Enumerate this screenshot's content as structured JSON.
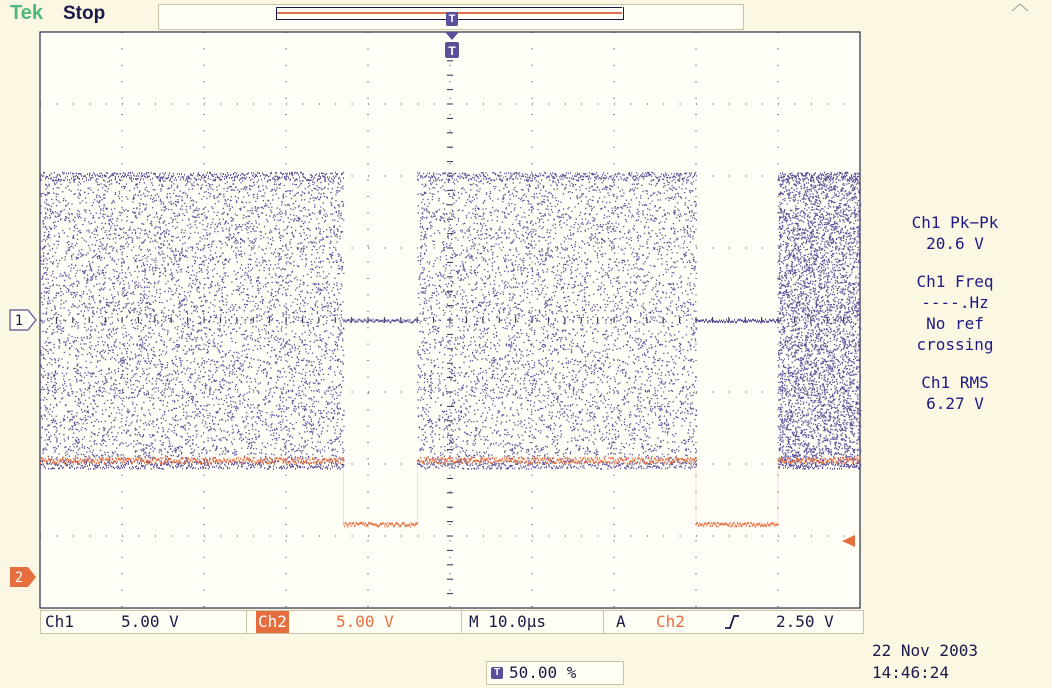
{
  "header": {
    "brand": "Tek",
    "status": "Stop",
    "trigger_marker": "T"
  },
  "colors": {
    "ch1": "#5a4f99",
    "ch2": "#e66e3e",
    "background": "#fbf7e2",
    "graticule": "#2a2a4a",
    "brand": "#4fb87a"
  },
  "channel_markers": {
    "ch1": "1",
    "ch2": "2"
  },
  "measurements": [
    {
      "label": "Ch1 Pk−Pk",
      "lines": [
        "20.6 V"
      ]
    },
    {
      "label": "Ch1 Freq",
      "lines": [
        "----.Hz",
        "No ref",
        "crossing"
      ]
    },
    {
      "label": "Ch1 RMS",
      "lines": [
        "6.27 V"
      ]
    }
  ],
  "bottom_bar": {
    "ch1_label": "Ch1",
    "ch1_scale": "5.00 V",
    "ch2_label": "Ch2",
    "ch2_scale": "5.00 V",
    "time_scale": "M 10.0µs",
    "trigger_source_label": "A",
    "trigger_source": "Ch2",
    "trigger_slope_icon": "rising-edge-icon",
    "trigger_level": "2.50 V"
  },
  "trigger_position": "50.00 %",
  "date": "22 Nov 2003",
  "time": "14:46:24",
  "waveform": {
    "time_per_div_us": 10,
    "volts_per_div": 5,
    "ch1_bursts_div": [
      [
        0,
        3.7
      ],
      [
        4.6,
        8.0
      ],
      [
        9.0,
        10
      ]
    ],
    "ch1_peak_to_peak_v": 20.6,
    "ch2_high_v": 5,
    "ch2_low_v": 0
  }
}
